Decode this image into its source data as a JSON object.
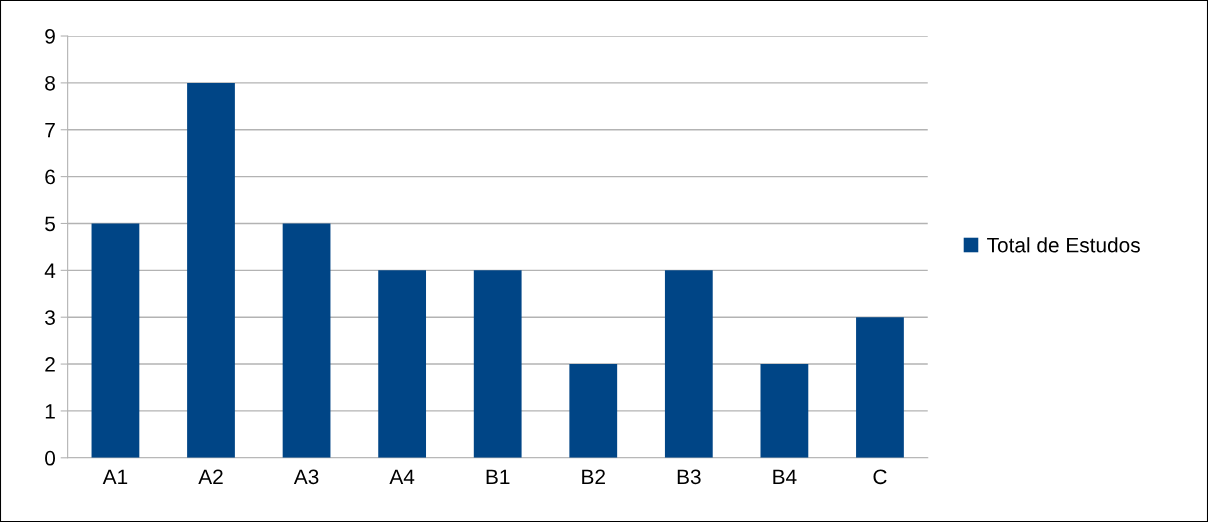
{
  "chart_data": {
    "type": "bar",
    "categories": [
      "A1",
      "A2",
      "A3",
      "A4",
      "B1",
      "B2",
      "B3",
      "B4",
      "C"
    ],
    "series": [
      {
        "name": "Total de Estudos",
        "color": "#004586",
        "values": [
          5,
          8,
          5,
          4,
          4,
          2,
          4,
          2,
          3
        ]
      }
    ],
    "ylim": [
      0,
      9
    ],
    "yticks": [
      0,
      1,
      2,
      3,
      4,
      5,
      6,
      7,
      8,
      9
    ],
    "grid": "y",
    "legend": "right"
  }
}
